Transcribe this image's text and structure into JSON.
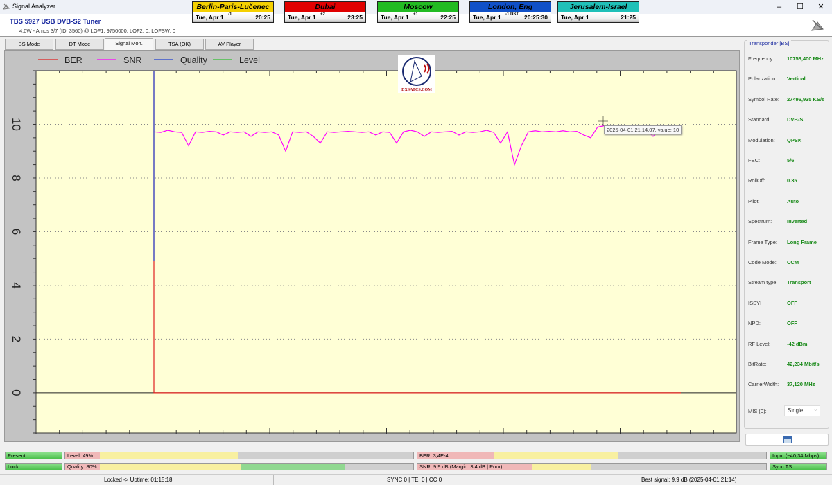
{
  "window": {
    "title": "Signal Analyzer",
    "controls": [
      "–",
      "☐",
      "✕"
    ]
  },
  "header": {
    "tuner": "TBS 5927 USB DVB-S2 Tuner",
    "subtitle": "4.0W - Amos 3/7 (ID: 3560) @ LOF1: 9750000, LOF2: 0, LOFSW: 0"
  },
  "clocks": [
    {
      "city": "Berlin-Paris-Lučenec",
      "date": "Tue, Apr 1",
      "offset": "-1",
      "time": "20:25",
      "color": "#f5d000",
      "text_color": "#000"
    },
    {
      "city": "Dubai",
      "date": "Tue, Apr 1",
      "offset": "+2",
      "time": "23:25",
      "color": "#e00000",
      "text_color": "#000"
    },
    {
      "city": "Moscow",
      "date": "Tue, Apr 1",
      "offset": "+1",
      "time": "22:25",
      "color": "#22bb22",
      "text_color": "#000"
    },
    {
      "city": "London, Eng",
      "date": "Tue, Apr 1",
      "offset": "-1 DST",
      "time": "20:25:30",
      "color": "#1050c8",
      "text_color": "#000"
    },
    {
      "city": "Jerusalem-Israel",
      "date": "Tue, Apr 1",
      "offset": "",
      "time": "21:25",
      "color": "#20c0b8",
      "text_color": "#000"
    }
  ],
  "tabs": [
    {
      "label": "BS Mode",
      "active": false
    },
    {
      "label": "DT Mode",
      "active": false
    },
    {
      "label": "Signal Mon.",
      "active": true
    },
    {
      "label": "TSA (OK)",
      "active": false
    },
    {
      "label": "AV Player",
      "active": false
    }
  ],
  "logo": {
    "text": "DXSATCS.COM"
  },
  "tooltip": "2025-04-01 21.14.07, value: 10",
  "chart_data": {
    "type": "line",
    "legend_position": "top-left",
    "grid": "dotted horizontal at labeled ticks",
    "ylim": [
      -1.5,
      12
    ],
    "xlim": [
      -17,
      84
    ],
    "yticks": [
      0,
      2,
      4,
      6,
      8,
      10
    ],
    "ytick_labels": [
      "0",
      "2",
      "4",
      "6",
      "8",
      "10"
    ],
    "xlabel": "",
    "ylabel": "",
    "background": "#ffffd6",
    "series": [
      {
        "name": "BER",
        "color": "#e02020",
        "x": [
          0,
          0,
          76
        ],
        "values": [
          12,
          0,
          0
        ]
      },
      {
        "name": "SNR",
        "color": "#ff00ff",
        "values": [
          9.72,
          9.7,
          9.78,
          9.72,
          9.7,
          9.2,
          9.72,
          9.7,
          9.74,
          9.72,
          9.6,
          9.72,
          9.7,
          9.72,
          9.55,
          9.72,
          9.7,
          9.72,
          9.6,
          9.0,
          9.72,
          9.7,
          9.72,
          9.55,
          9.3,
          9.72,
          9.7,
          9.72,
          9.74,
          9.72,
          9.7,
          9.72,
          9.6,
          9.72,
          9.7,
          9.3,
          9.72,
          9.78,
          9.72,
          9.55,
          9.72,
          9.7,
          9.72,
          9.74,
          9.6,
          9.72,
          9.7,
          9.72,
          9.78,
          9.7,
          9.3,
          9.72,
          8.5,
          9.2,
          9.72,
          9.76,
          9.72,
          9.74,
          9.72,
          9.76,
          9.72,
          9.74,
          9.6,
          9.5,
          9.9,
          9.95,
          9.82,
          9.8,
          9.84,
          9.82,
          9.7,
          9.8,
          9.55,
          9.82,
          9.8,
          9.84,
          9.95
        ]
      },
      {
        "name": "Quality",
        "color": "#2040d0",
        "x": [
          0,
          0
        ],
        "values": [
          12,
          4.9
        ]
      },
      {
        "name": "Level",
        "color": "#30c030",
        "values": []
      }
    ]
  },
  "transponder": {
    "title": "Transponder [BS]",
    "rows": [
      {
        "label": "Frequency:",
        "value": "10758,400 MHz"
      },
      {
        "label": "Polarization:",
        "value": "Vertical"
      },
      {
        "label": "Symbol Rate:",
        "value": "27496,935 KS/s"
      },
      {
        "label": "Standard:",
        "value": "DVB-S"
      },
      {
        "label": "Modulation:",
        "value": "QPSK"
      },
      {
        "label": "FEC:",
        "value": "5/6"
      },
      {
        "label": "RollOff:",
        "value": "0.35"
      },
      {
        "label": "Pilot:",
        "value": "Auto"
      },
      {
        "label": "Spectrum:",
        "value": "Inverted"
      },
      {
        "label": "Frame Type:",
        "value": "Long Frame"
      },
      {
        "label": "Code Mode:",
        "value": "CCM"
      },
      {
        "label": "Stream type:",
        "value": "Transport"
      },
      {
        "label": "ISSYI",
        "value": "OFF"
      },
      {
        "label": "NPD:",
        "value": "OFF"
      },
      {
        "label": "RF Level:",
        "value": "-42 dBm"
      },
      {
        "label": "BitRate:",
        "value": "42,234 Mbit/s"
      },
      {
        "label": "CarrierWidth:",
        "value": "37,120 MHz"
      }
    ],
    "mis_label": "MIS (0):",
    "mis_value": "Single"
  },
  "indicators": {
    "present": "Present",
    "lock": "Lock",
    "level": {
      "label": "Level: 49%",
      "percent": 49
    },
    "quality": {
      "label": "Quality: 80%",
      "percent": 80
    },
    "ber": {
      "label": "BER: 3,4E-4"
    },
    "snr": {
      "label": "SNR: 9,9 dB (Margin: 3,4 dB | Poor)"
    },
    "input": "Input (~40,34 Mbps)",
    "sync": "Sync TS"
  },
  "status": {
    "uptime": "Locked -> Uptime: 01:15:18",
    "counters": "SYNC 0 | TEI 0 | CC 0",
    "best": "Best signal: 9,9 dB (2025-04-01 21:14)"
  }
}
